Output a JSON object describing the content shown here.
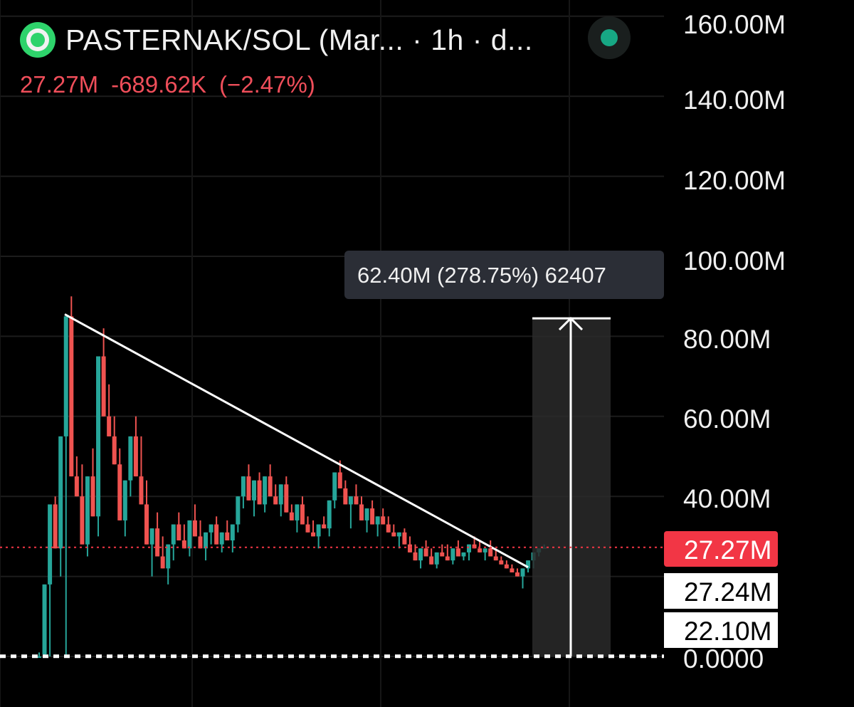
{
  "header": {
    "symbol": "PASTERNAK/SOL (Mar... · 1h · d...",
    "price": "27.27M",
    "change": "-689.62K",
    "change_pct": "(−2.47%)",
    "status_color": "#17a884"
  },
  "measure": {
    "label": "62.40M (278.75%) 62407",
    "from": 22.1,
    "to": 84.5
  },
  "price_tags": {
    "last": "27.27M",
    "line2": "27.24M",
    "line3": "22.10M"
  },
  "colors": {
    "up": "#26a69a",
    "down": "#ef5350",
    "trendline": "#ffffff",
    "last_price": "#f23645"
  },
  "chart_data": {
    "type": "candlestick",
    "y_unit": "M",
    "ylim": [
      0,
      160
    ],
    "y_ticks": [
      "160.00M",
      "140.00M",
      "120.00M",
      "100.00M",
      "80.00M",
      "60.00M",
      "40.00M",
      "0.0000"
    ],
    "grid": true,
    "trendline": {
      "from": {
        "bar": 0,
        "y": 85.5
      },
      "to": {
        "bar": 140,
        "y": 22.3
      }
    },
    "horizontal_lines": [
      {
        "y": 27.27,
        "color": "#f23645"
      },
      {
        "y": 22.1,
        "color": "#ffffff"
      }
    ],
    "candles": [
      [
        0,
        0,
        1
      ],
      [
        0.5,
        18,
        0
      ],
      [
        18,
        38,
        0
      ],
      [
        38,
        27,
        40
      ],
      [
        27,
        55,
        20
      ],
      [
        55,
        85,
        0
      ],
      [
        85,
        45,
        90
      ],
      [
        45,
        40,
        50
      ],
      [
        40,
        28,
        48
      ],
      [
        28,
        45,
        25
      ],
      [
        45,
        35,
        52
      ],
      [
        35,
        75,
        30
      ],
      [
        75,
        60,
        82
      ],
      [
        60,
        55,
        68
      ],
      [
        55,
        48,
        60
      ],
      [
        48,
        34,
        52
      ],
      [
        34,
        44,
        30
      ],
      [
        44,
        55,
        40
      ],
      [
        55,
        45,
        60
      ],
      [
        45,
        38,
        55
      ],
      [
        38,
        28,
        44
      ],
      [
        28,
        32,
        20
      ],
      [
        32,
        25,
        36
      ],
      [
        25,
        22,
        30
      ],
      [
        22,
        28,
        18
      ],
      [
        28,
        33,
        24
      ],
      [
        33,
        29,
        36
      ],
      [
        29,
        27,
        33
      ],
      [
        27,
        34,
        25
      ],
      [
        34,
        30,
        38
      ],
      [
        30,
        27,
        34
      ],
      [
        27,
        31,
        24
      ],
      [
        31,
        33,
        28
      ],
      [
        33,
        28,
        35
      ],
      [
        28,
        31,
        26
      ],
      [
        31,
        29,
        34
      ],
      [
        29,
        33,
        26
      ],
      [
        33,
        40,
        31
      ],
      [
        40,
        45,
        37
      ],
      [
        45,
        39,
        48
      ],
      [
        39,
        44,
        35
      ],
      [
        44,
        38,
        46
      ],
      [
        38,
        45,
        36
      ],
      [
        45,
        40,
        48
      ],
      [
        40,
        38,
        43
      ],
      [
        38,
        43,
        35
      ],
      [
        43,
        36,
        45
      ],
      [
        36,
        34,
        38
      ],
      [
        34,
        38,
        31
      ],
      [
        38,
        33,
        40
      ],
      [
        33,
        31,
        35
      ],
      [
        31,
        30,
        34
      ],
      [
        30,
        33,
        27
      ],
      [
        33,
        32,
        35
      ],
      [
        32,
        39,
        30
      ],
      [
        39,
        46,
        37
      ],
      [
        46,
        42,
        49
      ],
      [
        42,
        38,
        44
      ],
      [
        38,
        40,
        32
      ],
      [
        40,
        38,
        43
      ],
      [
        38,
        34,
        40
      ],
      [
        34,
        37,
        31
      ],
      [
        37,
        33,
        39
      ],
      [
        33,
        35,
        30
      ],
      [
        35,
        33,
        37
      ],
      [
        33,
        31,
        35
      ],
      [
        31,
        30,
        33
      ],
      [
        30,
        31,
        27
      ],
      [
        31,
        28,
        32
      ],
      [
        28,
        26,
        30
      ],
      [
        26,
        24,
        28
      ],
      [
        24,
        27,
        22
      ],
      [
        27,
        25,
        29
      ],
      [
        25,
        23,
        27
      ],
      [
        23,
        26,
        22
      ],
      [
        26,
        25,
        28
      ],
      [
        25,
        24,
        28
      ],
      [
        24,
        27,
        23
      ],
      [
        27,
        25,
        29
      ],
      [
        25,
        26,
        24
      ],
      [
        26,
        28,
        24
      ],
      [
        28,
        27,
        30
      ],
      [
        27,
        26,
        29
      ],
      [
        26,
        27,
        24
      ],
      [
        27,
        25,
        29
      ],
      [
        25,
        24,
        27
      ],
      [
        24,
        23,
        25
      ],
      [
        23,
        22,
        24
      ],
      [
        22,
        21,
        23
      ],
      [
        21,
        20,
        22
      ],
      [
        20,
        22,
        17
      ],
      [
        22,
        24,
        21
      ],
      [
        24,
        26,
        22
      ],
      [
        26,
        27,
        25
      ],
      [
        27,
        27.27,
        28
      ]
    ]
  }
}
